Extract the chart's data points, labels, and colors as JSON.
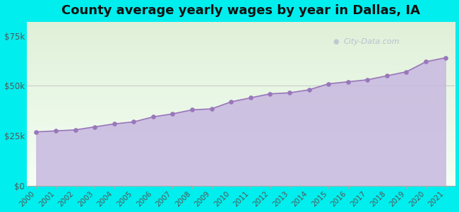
{
  "title": "County average yearly wages by year in Dallas, IA",
  "years": [
    2000,
    2001,
    2002,
    2003,
    2004,
    2005,
    2006,
    2007,
    2008,
    2009,
    2010,
    2011,
    2012,
    2013,
    2014,
    2015,
    2016,
    2017,
    2018,
    2019,
    2020,
    2021
  ],
  "wages": [
    27000,
    27500,
    28000,
    29500,
    31000,
    32000,
    34500,
    36000,
    38000,
    38500,
    42000,
    44000,
    46000,
    46500,
    48000,
    51000,
    52000,
    53000,
    55000,
    57000,
    62000,
    64000
  ],
  "fill_color": "#c8b8e0",
  "fill_alpha": 0.85,
  "line_color": "#9977bb",
  "marker_color": "#9977bb",
  "outer_bg": "#00eeee",
  "yticks": [
    0,
    25000,
    50000,
    75000
  ],
  "ylim": [
    0,
    82000
  ],
  "title_fontsize": 13,
  "watermark": "City-Data.com",
  "grid_color": "#cccccc",
  "bg_top_color": "#e8f5e0",
  "bg_bottom_color": "#f8fff8"
}
